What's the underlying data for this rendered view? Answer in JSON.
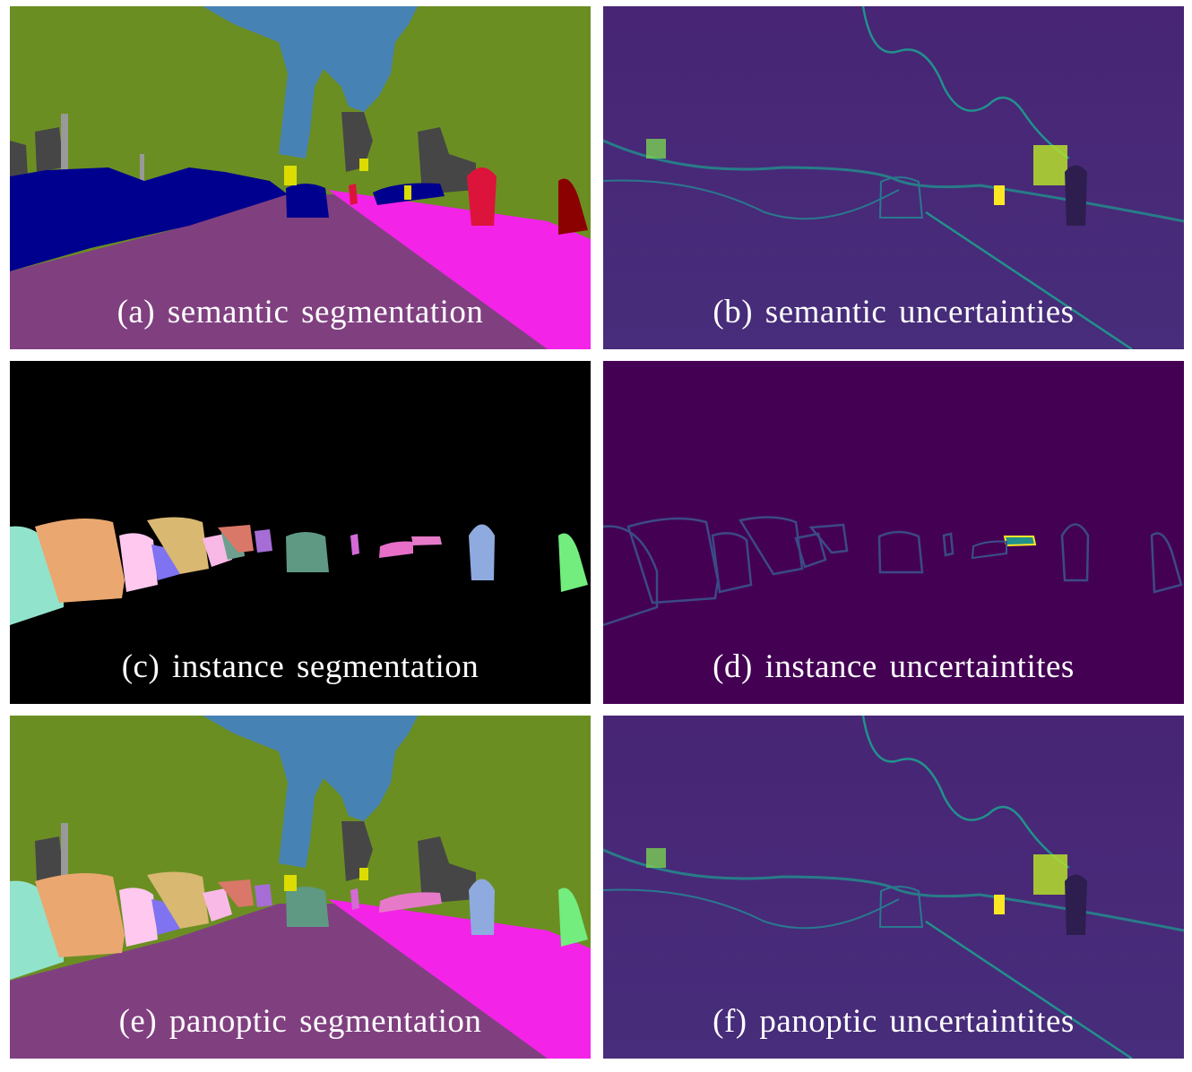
{
  "figure": {
    "panels": [
      {
        "id": "a",
        "caption": "(a) semantic segmentation"
      },
      {
        "id": "b",
        "caption": "(b) semantic uncertainties"
      },
      {
        "id": "c",
        "caption": "(c) instance segmentation"
      },
      {
        "id": "d",
        "caption": "(d) instance uncertaintites"
      },
      {
        "id": "e",
        "caption": "(e) panoptic segmentation"
      },
      {
        "id": "f",
        "caption": "(f) panoptic uncertaintites"
      }
    ]
  },
  "colors": {
    "vegetation": "#6b8e23",
    "sky": "#4682b4",
    "building": "#464646",
    "road": "#804080",
    "sidewalk": "#f423e8",
    "car": "#00008e",
    "person": "#dc143c",
    "rider": "#8b0000",
    "pole": "#999999",
    "traffic_sign": "#dcdc00",
    "instance_background": "#000000",
    "uncertainty_low": "#440154",
    "uncertainty_mid": "#3b528b",
    "uncertainty_edge": "#21918c",
    "uncertainty_high": "#fde725"
  }
}
